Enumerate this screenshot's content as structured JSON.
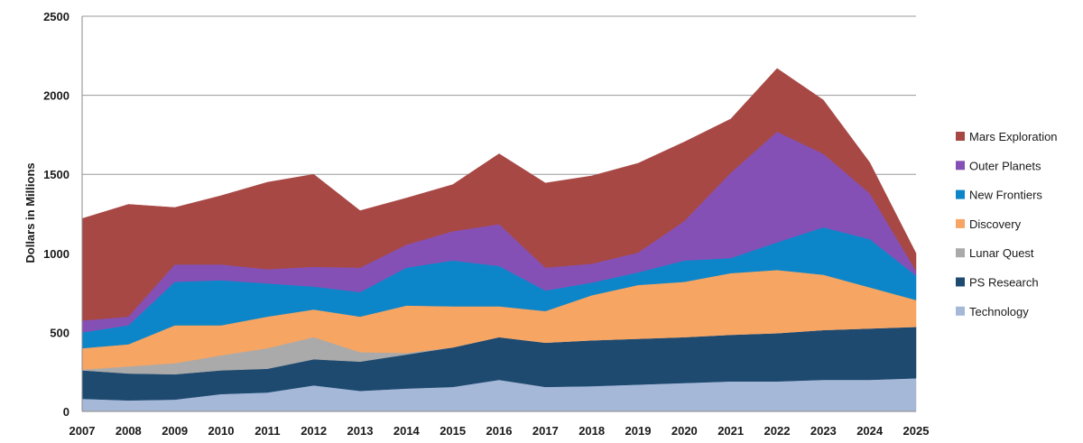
{
  "chart_data": {
    "type": "area",
    "stacked": true,
    "ylabel": "Dollars in Millions",
    "ylim": [
      0,
      2500
    ],
    "yticks": [
      "0",
      "500",
      "1000",
      "1500",
      "2000",
      "2500"
    ],
    "grid": true,
    "legend_position": "right",
    "categories": [
      "2007",
      "2008",
      "2009",
      "2010",
      "2011",
      "2012",
      "2013",
      "2014",
      "2015",
      "2016",
      "2017",
      "2018",
      "2019",
      "2020",
      "2021",
      "2022",
      "2023",
      "2024",
      "2025"
    ],
    "series": [
      {
        "name": "Technology",
        "color": "#a5b8d8",
        "values": [
          80,
          70,
          75,
          110,
          120,
          165,
          130,
          145,
          155,
          200,
          155,
          160,
          170,
          180,
          190,
          190,
          200,
          200,
          210
        ]
      },
      {
        "name": "PS Research",
        "color": "#1f4a70",
        "values": [
          180,
          170,
          160,
          150,
          150,
          165,
          185,
          215,
          250,
          270,
          280,
          290,
          290,
          290,
          295,
          305,
          315,
          325,
          325
        ]
      },
      {
        "name": "Lunar Quest",
        "color": "#aaaaaa",
        "values": [
          5,
          45,
          70,
          95,
          130,
          140,
          60,
          10,
          0,
          0,
          0,
          0,
          0,
          0,
          0,
          0,
          0,
          0,
          0
        ]
      },
      {
        "name": "Discovery",
        "color": "#f6a563",
        "values": [
          135,
          140,
          240,
          190,
          200,
          175,
          225,
          300,
          260,
          195,
          200,
          285,
          340,
          350,
          390,
          400,
          350,
          260,
          170
        ]
      },
      {
        "name": "New Frontiers",
        "color": "#0d86c9",
        "values": [
          100,
          120,
          275,
          285,
          210,
          145,
          155,
          240,
          290,
          255,
          130,
          80,
          80,
          135,
          95,
          175,
          300,
          305,
          155
        ]
      },
      {
        "name": "Outer Planets",
        "color": "#8450b5",
        "values": [
          75,
          55,
          110,
          100,
          90,
          125,
          155,
          145,
          185,
          265,
          145,
          120,
          125,
          250,
          540,
          700,
          465,
          290,
          30
        ]
      },
      {
        "name": "Mars Exploration",
        "color": "#a84845",
        "values": [
          645,
          710,
          360,
          435,
          550,
          585,
          360,
          295,
          295,
          445,
          535,
          555,
          565,
          500,
          340,
          400,
          340,
          195,
          110
        ]
      }
    ]
  }
}
